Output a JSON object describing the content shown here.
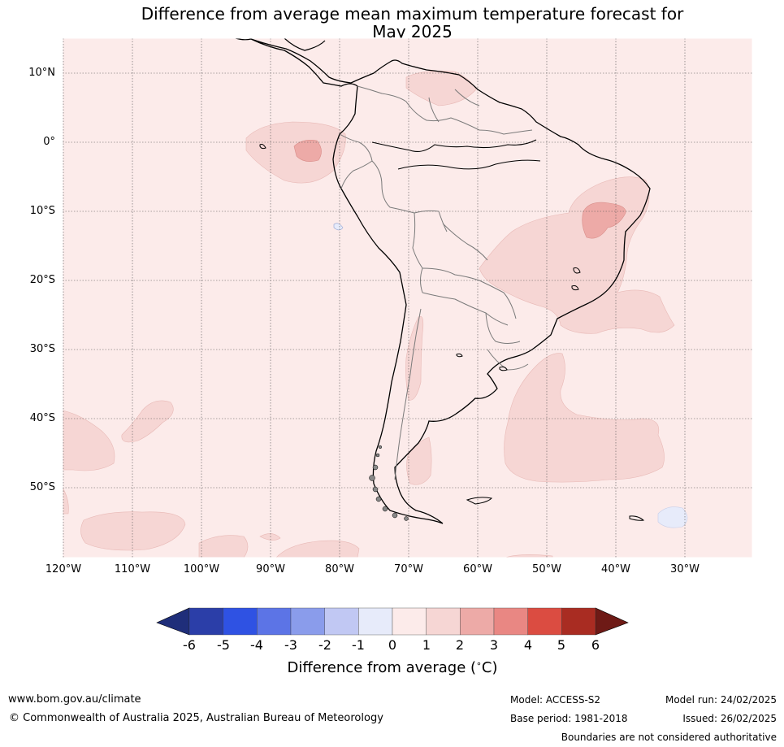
{
  "title_line1": "Difference from average mean maximum temperature forecast for",
  "title_line2": "May 2025",
  "lat_labels": [
    "10°N",
    "0°",
    "10°S",
    "20°S",
    "30°S",
    "40°S",
    "50°S"
  ],
  "lon_labels": [
    "120°W",
    "110°W",
    "100°W",
    "90°W",
    "80°W",
    "70°W",
    "60°W",
    "50°W",
    "40°W",
    "30°W"
  ],
  "colorbar": {
    "ticks": [
      "-6",
      "-5",
      "-4",
      "-3",
      "-2",
      "-1",
      "0",
      "1",
      "2",
      "3",
      "4",
      "5",
      "6"
    ],
    "colors": [
      "#2b3ea8",
      "#2f52e3",
      "#5c74e6",
      "#8a9ceb",
      "#c1c8f3",
      "#e7ebfa",
      "#fcebea",
      "#f6d6d4",
      "#edaaa7",
      "#e98783",
      "#db4c41",
      "#a92c22"
    ],
    "extend_low_color": "#1f2e7a",
    "extend_high_color": "#6e1a16",
    "label": "Difference from average (",
    "label_unit": "C)",
    "label_degree": "∘"
  },
  "colors": {
    "background_anomaly_0_1": "#fcebea",
    "anomaly_1_2": "#f6d6d4",
    "anomaly_2_3": "#edaaa7",
    "anomaly_neg1_0": "#e7ebfa"
  },
  "footer": {
    "website": "www.bom.gov.au/climate",
    "copyright": "© Commonwealth of Australia 2025, Australian Bureau of Meteorology",
    "model": "Model: ACCESS-S2",
    "base_period": "Base period: 1981-2018",
    "model_run": "Model run: 24/02/2025",
    "issued": "Issued: 26/02/2025",
    "disclaimer": "Boundaries are not considered authoritative"
  }
}
